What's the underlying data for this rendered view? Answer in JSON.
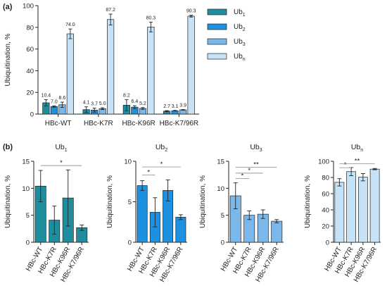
{
  "colors": {
    "ub1": "#1e8e9e",
    "ub2": "#1e90e0",
    "ub3": "#7ab8ec",
    "ubn": "#c6e2f7",
    "axis": "#222222"
  },
  "chart_data": [
    {
      "panel_label": "(a)",
      "type": "bar",
      "ylabel": "Ubiquitination, %",
      "ylim": [
        0,
        100
      ],
      "yticks": [
        0,
        20,
        40,
        60,
        80,
        100
      ],
      "categories": [
        "HBc-WT",
        "HBc-K7R",
        "HBc-K96R",
        "HBc-K7/96R"
      ],
      "legend_position": "right",
      "series": [
        {
          "name": "Ub₁",
          "name_base": "Ub",
          "name_sub": "1",
          "values": [
            10.4,
            4.1,
            8.2,
            2.7
          ],
          "errors": [
            2.9,
            2.6,
            5.2,
            0.5
          ],
          "labels": [
            "10.4",
            "4.1",
            "8.2",
            "2.7"
          ]
        },
        {
          "name": "Ub₂",
          "name_base": "Ub",
          "name_sub": "2",
          "values": [
            7.0,
            3.7,
            6.4,
            3.1
          ],
          "errors": [
            0.6,
            1.8,
            1.3,
            0.3
          ],
          "labels": [
            "7.0",
            "3.7",
            "6.4",
            "3.1"
          ]
        },
        {
          "name": "Ub₃",
          "name_base": "Ub",
          "name_sub": "3",
          "values": [
            8.6,
            5.0,
            5.2,
            3.9
          ],
          "errors": [
            2.4,
            0.8,
            0.8,
            0.3
          ],
          "labels": [
            "8.6",
            "5.0",
            "5.2",
            "3.9"
          ]
        },
        {
          "name": "Ubₙ",
          "name_base": "Ub",
          "name_sub": "n",
          "values": [
            74.0,
            87.2,
            80.3,
            90.3
          ],
          "errors": [
            4.5,
            5.0,
            4.5,
            0.8
          ],
          "labels": [
            "74.0",
            "87.2",
            "80.3",
            "90.3"
          ]
        }
      ]
    },
    {
      "panel_label": "(b)",
      "type": "bar",
      "title_base": "Ub",
      "title_sub": "1",
      "ylabel": "Ubiquitination, %",
      "ylim": [
        0,
        15
      ],
      "yticks": [
        0,
        5,
        10,
        15
      ],
      "categories": [
        "HBc-WT",
        "HBc-K7R",
        "HBc-K96R",
        "HBc-K7/96R"
      ],
      "values": [
        10.4,
        4.1,
        8.2,
        2.7
      ],
      "errors": [
        2.9,
        2.6,
        5.2,
        0.5
      ],
      "color_key": "ub1",
      "significance": [
        {
          "from": 0,
          "to": 3,
          "label": "*",
          "level": 14.2
        }
      ]
    },
    {
      "type": "bar",
      "title_base": "Ub",
      "title_sub": "2",
      "ylabel": "Ubiquitination, %",
      "ylim": [
        0,
        10
      ],
      "yticks": [
        0,
        5,
        10
      ],
      "categories": [
        "HBc-WT",
        "HBc-K7R",
        "HBc-K96R",
        "HBc-K7/96R"
      ],
      "values": [
        7.0,
        3.7,
        6.4,
        3.1
      ],
      "errors": [
        0.6,
        1.8,
        1.3,
        0.3
      ],
      "color_key": "ub2",
      "significance": [
        {
          "from": 0,
          "to": 1,
          "label": "*",
          "level": 8.3
        },
        {
          "from": 0,
          "to": 3,
          "label": "*",
          "level": 9.3
        }
      ]
    },
    {
      "type": "bar",
      "title_base": "Ub",
      "title_sub": "3",
      "ylabel": "Ubiquitination, %",
      "ylim": [
        0,
        15
      ],
      "yticks": [
        0,
        5,
        10,
        15
      ],
      "categories": [
        "HBc-WT",
        "HBc-K7R",
        "HBc-K96R",
        "HBc-K7/96R"
      ],
      "values": [
        8.6,
        5.0,
        5.2,
        3.9
      ],
      "errors": [
        2.4,
        0.8,
        0.8,
        0.3
      ],
      "color_key": "ub3",
      "significance": [
        {
          "from": 0,
          "to": 1,
          "label": "*",
          "level": 11.8
        },
        {
          "from": 0,
          "to": 2,
          "label": "*",
          "level": 12.8
        },
        {
          "from": 0,
          "to": 3,
          "label": "**",
          "level": 13.9
        }
      ]
    },
    {
      "type": "bar",
      "title_base": "Ub",
      "title_sub": "n",
      "ylabel": "Ubiquitination, %",
      "ylim": [
        0,
        100
      ],
      "yticks": [
        0,
        20,
        40,
        60,
        80,
        100
      ],
      "categories": [
        "HBc-WT",
        "HBc-K7R",
        "HBc-K96R",
        "HBc-K7/96R"
      ],
      "values": [
        74.0,
        87.2,
        80.3,
        90.3
      ],
      "errors": [
        4.5,
        5.0,
        4.5,
        0.8
      ],
      "color_key": "ubn",
      "significance": [
        {
          "from": 0,
          "to": 1,
          "label": "*",
          "level": 92
        },
        {
          "from": 0,
          "to": 3,
          "label": "**",
          "level": 97
        }
      ]
    }
  ]
}
